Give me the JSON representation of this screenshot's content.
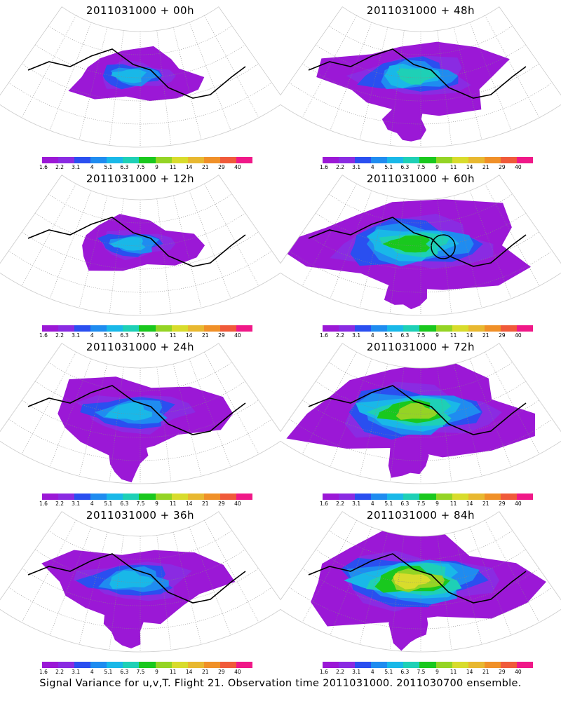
{
  "footer": "Signal Variance for u,v,T. Flight 21. Observation time 2011031000. 2011030700 ensemble.",
  "colorbar": {
    "colors": [
      "#9b18d6",
      "#8a2be2",
      "#2a4ff0",
      "#1f8cf0",
      "#19b8e8",
      "#1ed0b6",
      "#19c81e",
      "#94d424",
      "#d8dc2c",
      "#e8b830",
      "#f09028",
      "#f05a3a",
      "#f01888"
    ],
    "ticks": [
      "1.6",
      "2.2",
      "3.1",
      "4",
      "5.1",
      "6.3",
      "7.5",
      "9",
      "11",
      "14",
      "21",
      "29",
      "40"
    ]
  },
  "chart_data": [
    {
      "type": "heatmap",
      "title": "2011031000 + 00h",
      "colorbar_ticks": [
        1.6,
        2.2,
        3.1,
        4,
        5.1,
        6.3,
        7.5,
        9,
        11,
        14,
        21,
        29,
        40
      ],
      "coverage": "small",
      "peak_level": "5.1",
      "circle_marker": false
    },
    {
      "type": "heatmap",
      "title": "2011031000 + 12h",
      "colorbar_ticks": [
        1.6,
        2.2,
        3.1,
        4,
        5.1,
        6.3,
        7.5,
        9,
        11,
        14,
        21,
        29,
        40
      ],
      "coverage": "small",
      "peak_level": "5.1",
      "circle_marker": false
    },
    {
      "type": "heatmap",
      "title": "2011031000 + 24h",
      "colorbar_ticks": [
        1.6,
        2.2,
        3.1,
        4,
        5.1,
        6.3,
        7.5,
        9,
        11,
        14,
        21,
        29,
        40
      ],
      "coverage": "medium",
      "peak_level": "5.1",
      "circle_marker": false
    },
    {
      "type": "heatmap",
      "title": "2011031000 + 36h",
      "colorbar_ticks": [
        1.6,
        2.2,
        3.1,
        4,
        5.1,
        6.3,
        7.5,
        9,
        11,
        14,
        21,
        29,
        40
      ],
      "coverage": "medium",
      "peak_level": "5.1",
      "circle_marker": false
    },
    {
      "type": "heatmap",
      "title": "2011031000 + 48h",
      "colorbar_ticks": [
        1.6,
        2.2,
        3.1,
        4,
        5.1,
        6.3,
        7.5,
        9,
        11,
        14,
        21,
        29,
        40
      ],
      "coverage": "medium",
      "peak_level": "6.3",
      "circle_marker": false
    },
    {
      "type": "heatmap",
      "title": "2011031000 + 60h",
      "colorbar_ticks": [
        1.6,
        2.2,
        3.1,
        4,
        5.1,
        6.3,
        7.5,
        9,
        11,
        14,
        21,
        29,
        40
      ],
      "coverage": "large",
      "peak_level": "7.5",
      "circle_marker": true
    },
    {
      "type": "heatmap",
      "title": "2011031000 + 72h",
      "colorbar_ticks": [
        1.6,
        2.2,
        3.1,
        4,
        5.1,
        6.3,
        7.5,
        9,
        11,
        14,
        21,
        29,
        40
      ],
      "coverage": "large",
      "peak_level": "9",
      "circle_marker": false
    },
    {
      "type": "heatmap",
      "title": "2011031000 + 84h",
      "colorbar_ticks": [
        1.6,
        2.2,
        3.1,
        4,
        5.1,
        6.3,
        7.5,
        9,
        11,
        14,
        21,
        29,
        40
      ],
      "coverage": "large",
      "peak_level": "11",
      "circle_marker": false
    }
  ]
}
